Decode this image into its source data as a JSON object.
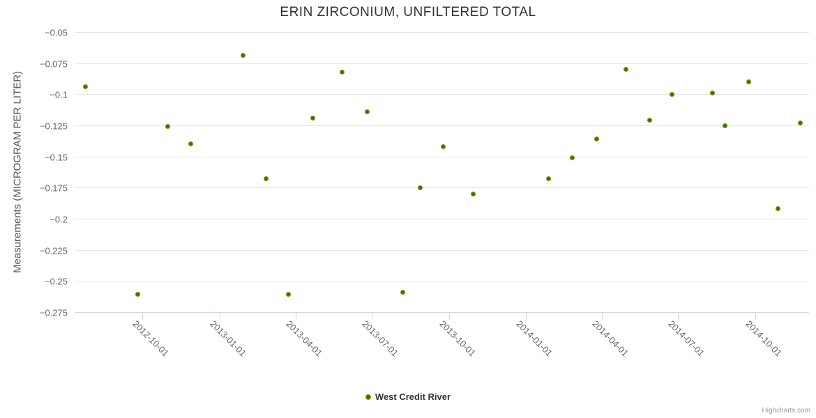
{
  "title": "ERIN ZIRCONIUM, UNFILTERED TOTAL",
  "credits": "Highcharts.com",
  "legend": {
    "label": "West Credit River"
  },
  "colors": {
    "point_outer": "#7db500",
    "point_mid": "#5d9408",
    "point_inner": "#3a6c05",
    "grid": "#e6e6e6",
    "axis_line": "#ccd6eb",
    "tick_label": "#666666",
    "title": "#333333",
    "legend_text": "#333333",
    "credits_text": "#999999"
  },
  "chart_data": {
    "type": "scatter",
    "title": "ERIN ZIRCONIUM, UNFILTERED TOTAL",
    "xlabel": "",
    "ylabel": "Measurements (MICROGRAM PER LITER)",
    "grid": true,
    "legend_position": "bottom-center",
    "xlim": [
      "2012-07-12",
      "2014-12-04"
    ],
    "ylim": [
      -0.275,
      -0.05
    ],
    "yticks": [
      -0.05,
      -0.075,
      -0.1,
      -0.125,
      -0.15,
      -0.175,
      -0.2,
      -0.225,
      -0.25,
      -0.275
    ],
    "ytick_labels": [
      "−0.05",
      "−0.075",
      "−0.1",
      "−0.125",
      "−0.15",
      "−0.175",
      "−0.2",
      "−0.225",
      "−0.25",
      "−0.275"
    ],
    "xticks": [
      "2012-10-01",
      "2013-01-01",
      "2013-04-01",
      "2013-07-01",
      "2013-10-01",
      "2014-01-01",
      "2014-04-01",
      "2014-07-01",
      "2014-10-01"
    ],
    "x": [
      "2012-07-25",
      "2012-09-25",
      "2012-10-31",
      "2012-11-27",
      "2013-01-29",
      "2013-02-25",
      "2013-03-24",
      "2013-04-22",
      "2013-05-27",
      "2013-06-26",
      "2013-08-07",
      "2013-08-28",
      "2013-09-24",
      "2013-10-30",
      "2014-01-28",
      "2014-02-25",
      "2014-03-26",
      "2014-04-30",
      "2014-05-28",
      "2014-06-24",
      "2014-08-11",
      "2014-08-26",
      "2014-09-23",
      "2014-10-28",
      "2014-11-24"
    ],
    "series": [
      {
        "name": "West Credit River",
        "color": "#7db500",
        "values": [
          -0.094,
          -0.261,
          -0.126,
          -0.14,
          -0.069,
          -0.168,
          -0.261,
          -0.119,
          -0.082,
          -0.114,
          -0.259,
          -0.175,
          -0.142,
          -0.18,
          -0.168,
          -0.151,
          -0.136,
          -0.08,
          -0.121,
          -0.1,
          -0.099,
          -0.125,
          -0.09,
          -0.192,
          -0.123
        ]
      }
    ]
  }
}
